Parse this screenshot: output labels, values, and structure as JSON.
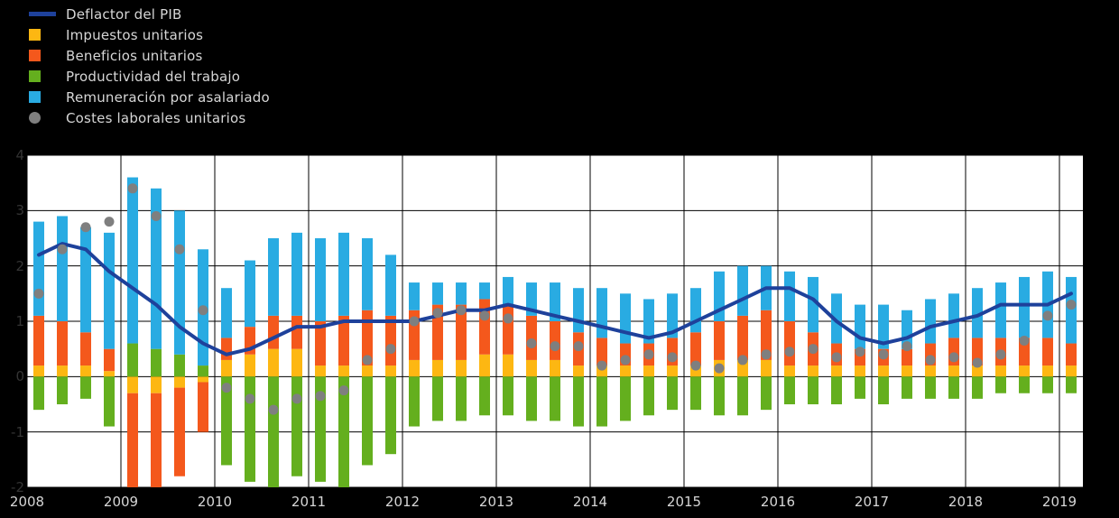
{
  "background_color": "#000000",
  "plot_background_color": "#ffffff",
  "grid_color": "#000000",
  "legend": {
    "items": [
      {
        "label": "Deflactor del PIB",
        "color": "#1e419b",
        "swatch": "line"
      },
      {
        "label": "Impuestos unitarios",
        "color": "#fdb712",
        "swatch": "square"
      },
      {
        "label": "Beneficios unitarios",
        "color": "#f4581c",
        "swatch": "square"
      },
      {
        "label": "Productividad del trabajo",
        "color": "#64af1e",
        "swatch": "square"
      },
      {
        "label": "Remuneración por asalariado",
        "color": "#29abe2",
        "swatch": "square"
      },
      {
        "label": "Costes laborales unitarios",
        "color": "#7f7f7f",
        "swatch": "circle"
      }
    ]
  },
  "axes": {
    "y_ticks": [
      "4",
      "3",
      "2",
      "1",
      "0",
      "-1",
      "-2"
    ],
    "x_ticks": [
      "2008",
      "2009",
      "2010",
      "2011",
      "2012",
      "2013",
      "2014",
      "2015",
      "2016",
      "2017",
      "2018",
      "2019"
    ]
  },
  "chart_data": {
    "type": "bar",
    "subtype": "stacked-bars-with-line-and-dots",
    "title": "",
    "xlabel": "",
    "ylabel": "",
    "ylim": [
      -2,
      4
    ],
    "grid": true,
    "legend_position": "top-left",
    "x_year_labels": [
      "2008",
      "2009",
      "2010",
      "2011",
      "2012",
      "2013",
      "2014",
      "2015",
      "2016",
      "2017",
      "2018",
      "2019"
    ],
    "x": [
      "2008Q1",
      "2008Q2",
      "2008Q3",
      "2008Q4",
      "2009Q1",
      "2009Q2",
      "2009Q3",
      "2009Q4",
      "2010Q1",
      "2010Q2",
      "2010Q3",
      "2010Q4",
      "2011Q1",
      "2011Q2",
      "2011Q3",
      "2011Q4",
      "2012Q1",
      "2012Q2",
      "2012Q3",
      "2012Q4",
      "2013Q1",
      "2013Q2",
      "2013Q3",
      "2013Q4",
      "2014Q1",
      "2014Q2",
      "2014Q3",
      "2014Q4",
      "2015Q1",
      "2015Q2",
      "2015Q3",
      "2015Q4",
      "2016Q1",
      "2016Q2",
      "2016Q3",
      "2016Q4",
      "2017Q1",
      "2017Q2",
      "2017Q3",
      "2017Q4",
      "2018Q1",
      "2018Q2",
      "2018Q3",
      "2018Q4",
      "2019Q1"
    ],
    "series": [
      {
        "name": "Impuestos unitarios",
        "key": "impuestos",
        "role": "bar",
        "color": "#fdb712",
        "values": [
          0.2,
          0.2,
          0.2,
          0.1,
          -0.3,
          -0.3,
          -0.2,
          -0.1,
          0.3,
          0.4,
          0.5,
          0.5,
          0.2,
          0.2,
          0.2,
          0.2,
          0.3,
          0.3,
          0.3,
          0.4,
          0.4,
          0.3,
          0.3,
          0.2,
          0.2,
          0.2,
          0.2,
          0.2,
          0.2,
          0.3,
          0.3,
          0.3,
          0.2,
          0.2,
          0.2,
          0.2,
          0.2,
          0.2,
          0.2,
          0.2,
          0.2,
          0.2,
          0.2,
          0.2,
          0.2
        ]
      },
      {
        "name": "Beneficios unitarios",
        "key": "beneficios",
        "role": "bar",
        "color": "#f4581c",
        "values": [
          0.9,
          0.8,
          0.6,
          0.4,
          -1.9,
          -2.1,
          -1.6,
          -0.9,
          0.4,
          0.5,
          0.6,
          0.6,
          0.8,
          0.9,
          1.0,
          0.9,
          0.9,
          1.0,
          1.0,
          1.0,
          0.9,
          0.8,
          0.7,
          0.6,
          0.5,
          0.4,
          0.4,
          0.5,
          0.6,
          0.7,
          0.8,
          0.9,
          0.8,
          0.6,
          0.4,
          0.3,
          0.3,
          0.3,
          0.4,
          0.5,
          0.5,
          0.5,
          0.5,
          0.5,
          0.4
        ]
      },
      {
        "name": "Productividad del trabajo",
        "key": "productividad",
        "role": "bar",
        "color": "#64af1e",
        "values": [
          -0.6,
          -0.5,
          -0.4,
          -0.9,
          0.6,
          0.5,
          0.4,
          0.2,
          -1.6,
          -1.9,
          -2.2,
          -1.8,
          -1.9,
          -2.1,
          -1.6,
          -1.4,
          -0.9,
          -0.8,
          -0.8,
          -0.7,
          -0.7,
          -0.8,
          -0.8,
          -0.9,
          -0.9,
          -0.8,
          -0.7,
          -0.6,
          -0.6,
          -0.7,
          -0.7,
          -0.6,
          -0.5,
          -0.5,
          -0.5,
          -0.4,
          -0.5,
          -0.4,
          -0.4,
          -0.4,
          -0.4,
          -0.3,
          -0.3,
          -0.3,
          -0.3
        ]
      },
      {
        "name": "Remuneración por asalariado",
        "key": "remuneracion",
        "role": "bar",
        "color": "#29abe2",
        "values": [
          1.7,
          1.9,
          1.9,
          2.1,
          3.0,
          2.9,
          2.6,
          2.1,
          0.9,
          1.2,
          1.4,
          1.5,
          1.5,
          1.5,
          1.3,
          1.1,
          0.5,
          0.4,
          0.4,
          0.3,
          0.5,
          0.6,
          0.7,
          0.8,
          0.9,
          0.9,
          0.8,
          0.8,
          0.8,
          0.9,
          0.9,
          0.8,
          0.9,
          1.0,
          0.9,
          0.8,
          0.8,
          0.7,
          0.8,
          0.8,
          0.9,
          1.0,
          1.1,
          1.2,
          1.2
        ]
      },
      {
        "name": "Deflactor del PIB",
        "key": "deflactor",
        "role": "line",
        "color": "#1e419b",
        "values": [
          2.2,
          2.4,
          2.3,
          1.9,
          1.6,
          1.3,
          0.9,
          0.6,
          0.4,
          0.5,
          0.7,
          0.9,
          0.9,
          1.0,
          1.0,
          1.0,
          1.0,
          1.1,
          1.2,
          1.2,
          1.3,
          1.2,
          1.1,
          1.0,
          0.9,
          0.8,
          0.7,
          0.8,
          1.0,
          1.2,
          1.4,
          1.6,
          1.6,
          1.4,
          1.0,
          0.7,
          0.6,
          0.7,
          0.9,
          1.0,
          1.1,
          1.3,
          1.3,
          1.3,
          1.5
        ]
      },
      {
        "name": "Costes laborales unitarios",
        "key": "clu",
        "role": "scatter",
        "color": "#7f7f7f",
        "values": [
          1.5,
          2.3,
          2.7,
          2.8,
          3.4,
          2.9,
          2.3,
          1.2,
          -0.2,
          -0.4,
          -0.6,
          -0.4,
          -0.35,
          -0.25,
          0.3,
          0.5,
          1.0,
          1.15,
          1.2,
          1.1,
          1.05,
          0.6,
          0.55,
          0.55,
          0.2,
          0.3,
          0.4,
          0.35,
          0.2,
          0.15,
          0.3,
          0.4,
          0.45,
          0.5,
          0.35,
          0.45,
          0.4,
          0.55,
          0.3,
          0.35,
          0.25,
          0.4,
          0.65,
          1.1,
          1.3
        ]
      }
    ]
  }
}
